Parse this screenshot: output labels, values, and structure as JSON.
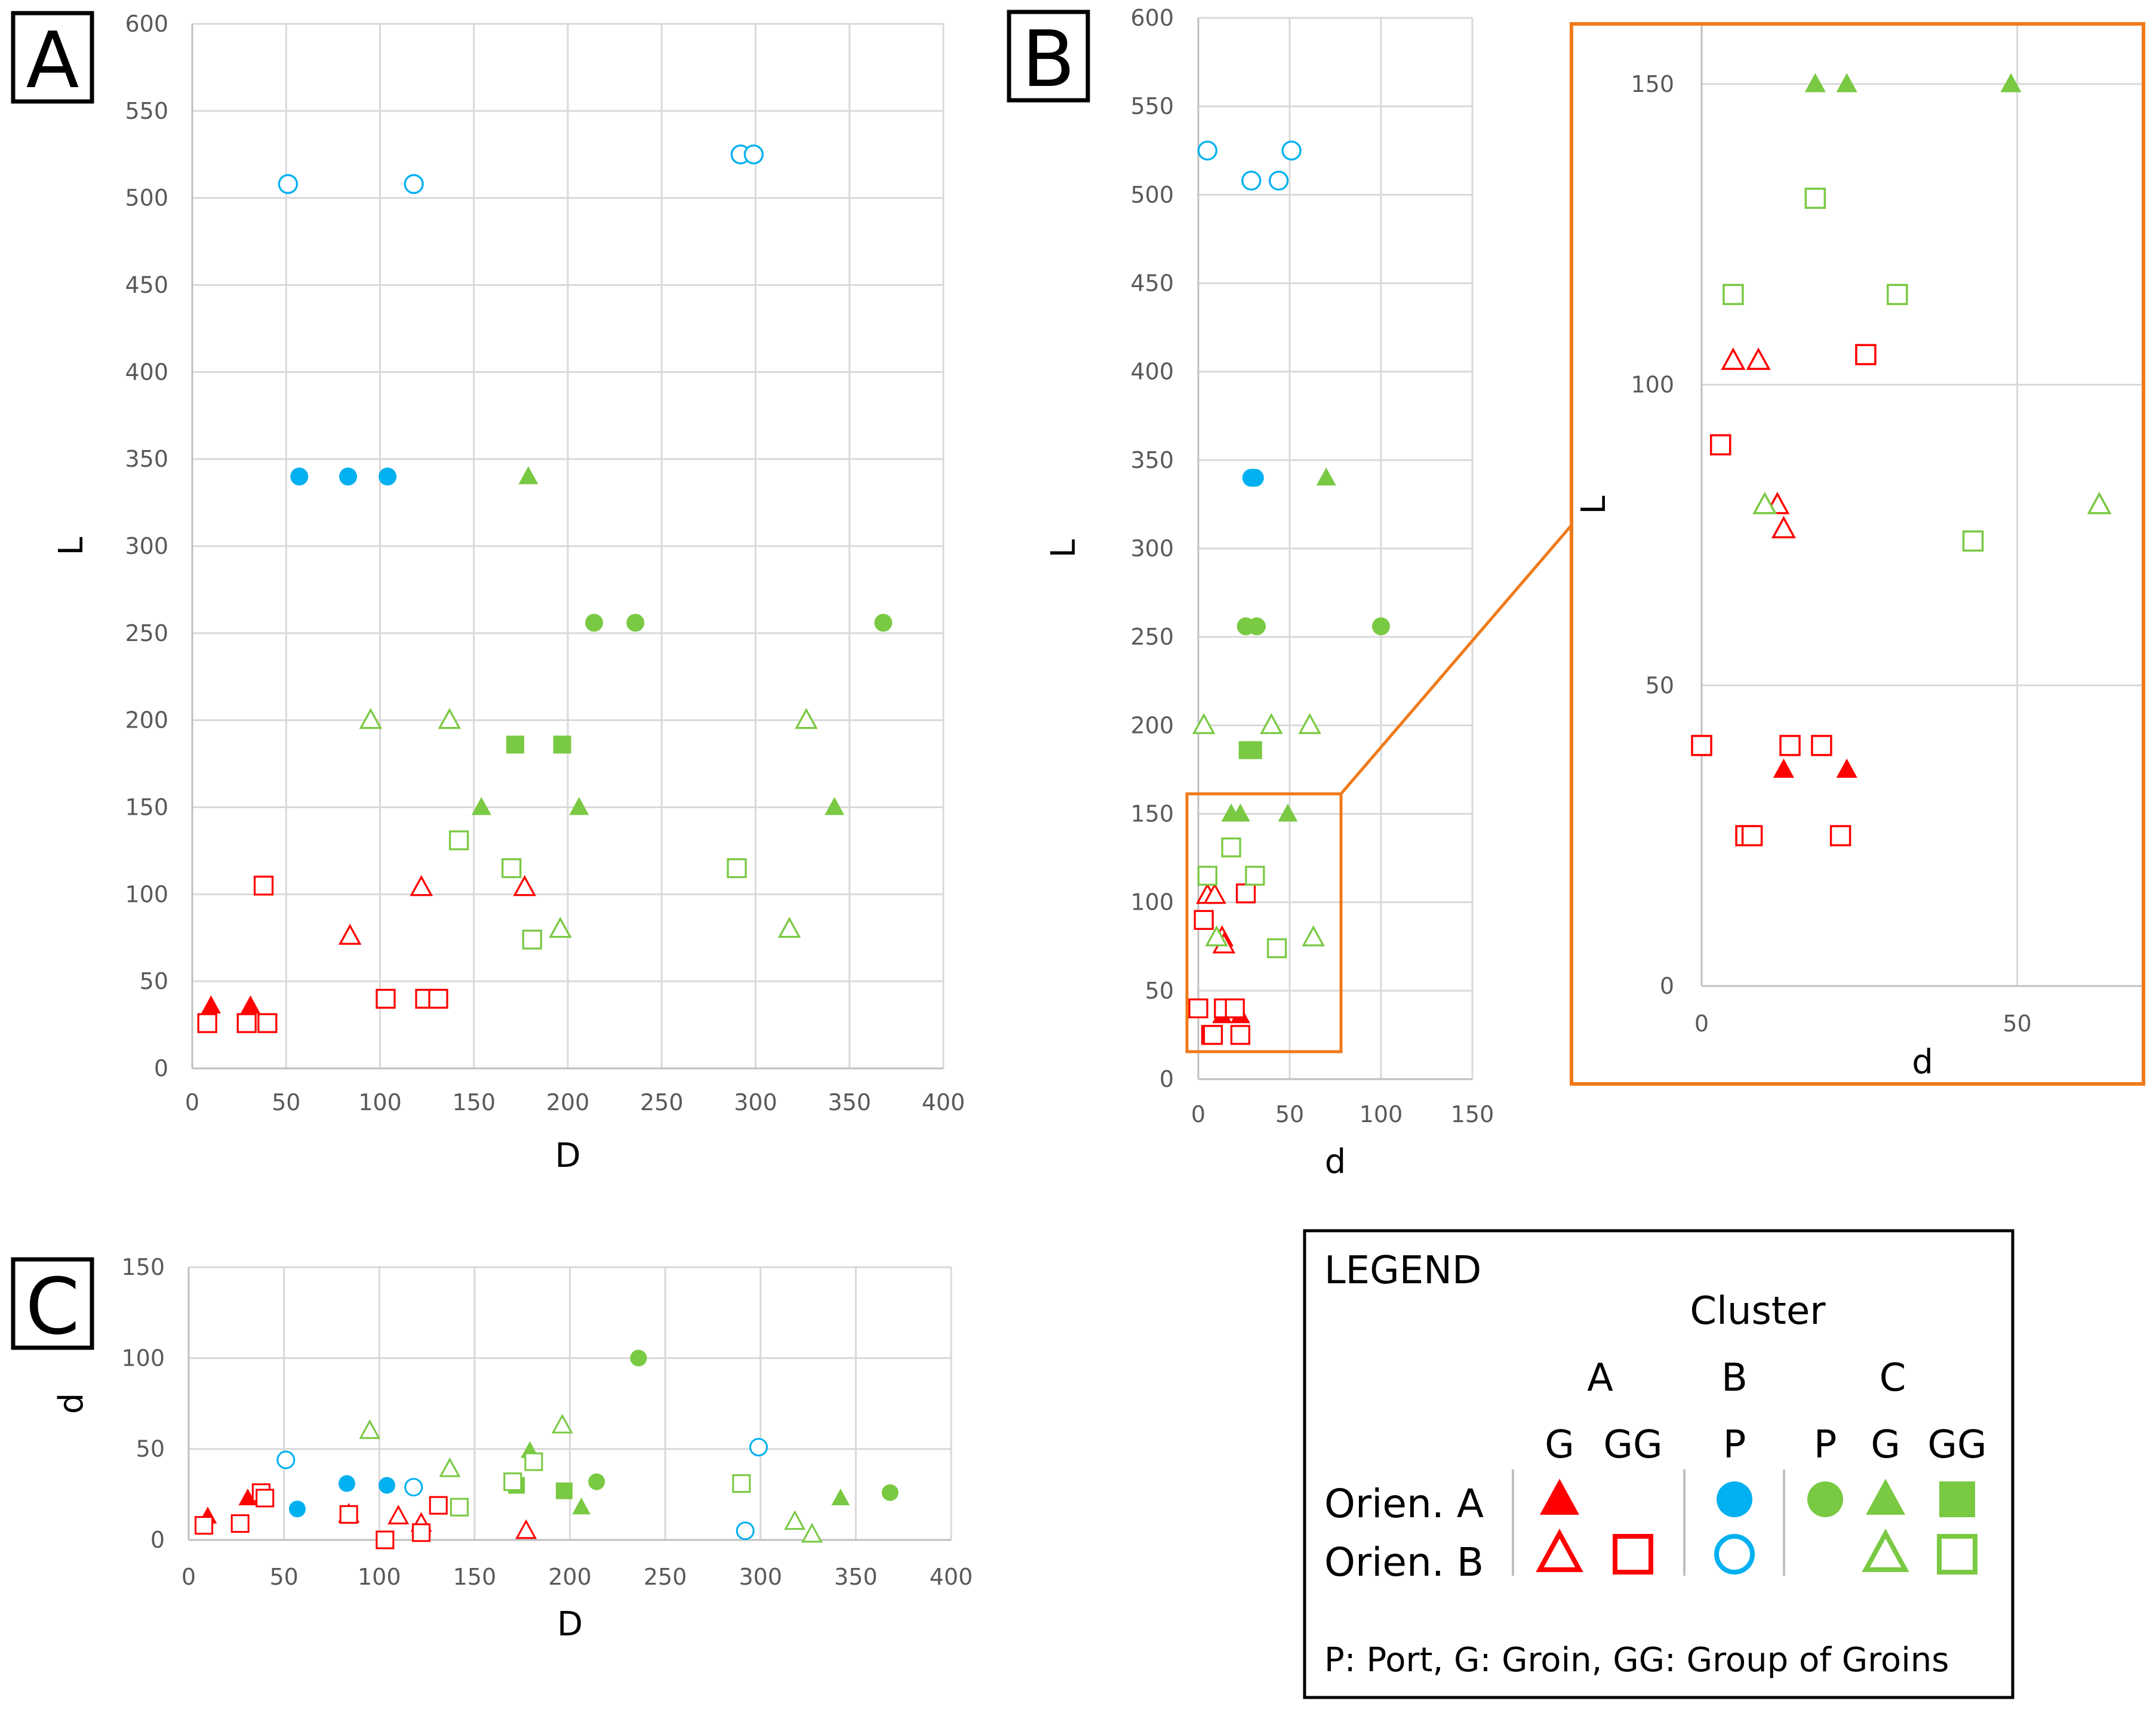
{
  "colors": {
    "orien_a_cluster_a": "#ff0000",
    "cluster_b": "#00b0f0",
    "cluster_c": "#7ac943",
    "grid": "#d9d9d9",
    "zoom_frame": "#f07a1a"
  },
  "chart_data": [
    {
      "panel": "A",
      "type": "scatter",
      "xlabel": "D",
      "ylabel": "L",
      "xlim": [
        0,
        400
      ],
      "ylim": [
        0,
        600
      ],
      "xticks": [
        "0",
        "50",
        "100",
        "150",
        "200",
        "250",
        "300",
        "350",
        "400"
      ],
      "yticks": [
        "0",
        "50",
        "100",
        "150",
        "200",
        "250",
        "300",
        "350",
        "400",
        "450",
        "500",
        "550",
        "600"
      ],
      "series": [
        {
          "name": "A G Orien. A",
          "marker": "triangle",
          "filled": true,
          "color": "#ff0000",
          "x": [
            10,
            31
          ],
          "y": [
            36,
            36
          ]
        },
        {
          "name": "A G Orien. B",
          "marker": "triangle",
          "filled": false,
          "color": "#ff0000",
          "x": [
            84,
            122,
            177
          ],
          "y": [
            76,
            104,
            104
          ]
        },
        {
          "name": "A GG Orien. B",
          "marker": "square",
          "filled": false,
          "color": "#ff0000",
          "x": [
            8,
            29,
            40,
            38,
            103,
            124,
            131
          ],
          "y": [
            26,
            26,
            26,
            105,
            40,
            40,
            40
          ]
        },
        {
          "name": "B P Orien. A",
          "marker": "circle",
          "filled": true,
          "color": "#00b0f0",
          "x": [
            57,
            83,
            104
          ],
          "y": [
            340,
            340,
            340
          ]
        },
        {
          "name": "B P Orien. B",
          "marker": "circle",
          "filled": false,
          "color": "#00b0f0",
          "x": [
            51,
            118,
            292,
            299
          ],
          "y": [
            508,
            508,
            525,
            525
          ]
        },
        {
          "name": "C P Orien. A",
          "marker": "circle",
          "filled": true,
          "color": "#7ac943",
          "x": [
            214,
            236,
            368
          ],
          "y": [
            256,
            256,
            256
          ]
        },
        {
          "name": "C G Orien. A",
          "marker": "triangle",
          "filled": true,
          "color": "#7ac943",
          "x": [
            179,
            154,
            206,
            342
          ],
          "y": [
            340,
            150,
            150,
            150
          ]
        },
        {
          "name": "C GG Orien. A",
          "marker": "square",
          "filled": true,
          "color": "#7ac943",
          "x": [
            172,
            197
          ],
          "y": [
            186,
            186
          ]
        },
        {
          "name": "C G Orien. B",
          "marker": "triangle",
          "filled": false,
          "color": "#7ac943",
          "x": [
            95,
            137,
            327,
            196,
            318
          ],
          "y": [
            200,
            200,
            200,
            80,
            80
          ]
        },
        {
          "name": "C GG Orien. B",
          "marker": "square",
          "filled": false,
          "color": "#7ac943",
          "x": [
            142,
            170,
            290,
            181
          ],
          "y": [
            131,
            115,
            115,
            74
          ]
        }
      ]
    },
    {
      "panel": "B",
      "type": "scatter",
      "xlabel": "d",
      "ylabel": "L",
      "xlim": [
        0,
        150
      ],
      "ylim": [
        0,
        600
      ],
      "xticks": [
        "0",
        "50",
        "100",
        "150"
      ],
      "yticks": [
        "0",
        "50",
        "100",
        "150",
        "200",
        "250",
        "300",
        "350",
        "400",
        "450",
        "500",
        "550",
        "600"
      ],
      "series": [
        {
          "name": "A G Orien. A",
          "marker": "triangle",
          "filled": true,
          "color": "#ff0000",
          "x": [
            13,
            23
          ],
          "y": [
            36,
            36
          ]
        },
        {
          "name": "A G Orien. B",
          "marker": "triangle",
          "filled": false,
          "color": "#ff0000",
          "x": [
            5,
            9,
            13,
            14
          ],
          "y": [
            104,
            104,
            80,
            76
          ]
        },
        {
          "name": "A GG Orien. B",
          "marker": "square",
          "filled": false,
          "color": "#ff0000",
          "x": [
            0,
            14,
            20,
            7,
            8,
            23,
            26,
            3
          ],
          "y": [
            40,
            40,
            40,
            25,
            25,
            25,
            105,
            90
          ]
        },
        {
          "name": "B P Orien. A",
          "marker": "circle",
          "filled": true,
          "color": "#00b0f0",
          "x": [
            29,
            30,
            31
          ],
          "y": [
            340,
            340,
            340
          ]
        },
        {
          "name": "B P Orien. B",
          "marker": "circle",
          "filled": false,
          "color": "#00b0f0",
          "x": [
            5,
            29,
            44,
            51
          ],
          "y": [
            525,
            508,
            508,
            525
          ]
        },
        {
          "name": "C P Orien. A",
          "marker": "circle",
          "filled": true,
          "color": "#7ac943",
          "x": [
            26,
            32,
            100
          ],
          "y": [
            256,
            256,
            256
          ]
        },
        {
          "name": "C G Orien. A",
          "marker": "triangle",
          "filled": true,
          "color": "#7ac943",
          "x": [
            70,
            18,
            23,
            49
          ],
          "y": [
            340,
            150,
            150,
            150
          ]
        },
        {
          "name": "C GG Orien. A",
          "marker": "square",
          "filled": true,
          "color": "#7ac943",
          "x": [
            27,
            30
          ],
          "y": [
            186,
            186
          ]
        },
        {
          "name": "C G Orien. B",
          "marker": "triangle",
          "filled": false,
          "color": "#7ac943",
          "x": [
            3,
            40,
            61,
            10,
            63
          ],
          "y": [
            200,
            200,
            200,
            80,
            80
          ]
        },
        {
          "name": "C GG Orien. B",
          "marker": "square",
          "filled": false,
          "color": "#7ac943",
          "x": [
            5,
            18,
            31,
            43
          ],
          "y": [
            115,
            131,
            115,
            74
          ]
        }
      ]
    },
    {
      "panel": "B-zoom",
      "type": "scatter",
      "xlabel": "d",
      "ylabel": "L",
      "xlim": [
        0,
        70
      ],
      "ylim": [
        0,
        160
      ],
      "xticks": [
        "0",
        "50"
      ],
      "yticks": [
        "0",
        "50",
        "100",
        "150"
      ],
      "series": [
        {
          "name": "A G Orien. A",
          "marker": "triangle",
          "filled": true,
          "color": "#ff0000",
          "x": [
            13,
            23
          ],
          "y": [
            36,
            36
          ]
        },
        {
          "name": "A G Orien. B",
          "marker": "triangle",
          "filled": false,
          "color": "#ff0000",
          "x": [
            5,
            9,
            12,
            13
          ],
          "y": [
            104,
            104,
            80,
            76
          ]
        },
        {
          "name": "A GG Orien. B",
          "marker": "square",
          "filled": false,
          "color": "#ff0000",
          "x": [
            0,
            14,
            19,
            7,
            8,
            22,
            26,
            3
          ],
          "y": [
            40,
            40,
            40,
            25,
            25,
            25,
            105,
            90
          ]
        },
        {
          "name": "C G Orien. A",
          "marker": "triangle",
          "filled": true,
          "color": "#7ac943",
          "x": [
            18,
            23,
            49
          ],
          "y": [
            150,
            150,
            150
          ]
        },
        {
          "name": "C G Orien. B",
          "marker": "triangle",
          "filled": false,
          "color": "#7ac943",
          "x": [
            10,
            63
          ],
          "y": [
            80,
            80
          ]
        },
        {
          "name": "C GG Orien. B",
          "marker": "square",
          "filled": false,
          "color": "#7ac943",
          "x": [
            5,
            18,
            31,
            43
          ],
          "y": [
            115,
            131,
            115,
            74
          ]
        }
      ]
    },
    {
      "panel": "C",
      "type": "scatter",
      "xlabel": "D",
      "ylabel": "d",
      "xlim": [
        0,
        400
      ],
      "ylim": [
        0,
        150
      ],
      "xticks": [
        "0",
        "50",
        "100",
        "150",
        "200",
        "250",
        "300",
        "350",
        "400"
      ],
      "yticks": [
        "0",
        "50",
        "100",
        "150"
      ],
      "series": [
        {
          "name": "A G Orien. A",
          "marker": "triangle",
          "filled": true,
          "color": "#ff0000",
          "x": [
            10,
            31
          ],
          "y": [
            13,
            23
          ]
        },
        {
          "name": "A G Orien. B",
          "marker": "triangle",
          "filled": false,
          "color": "#ff0000",
          "x": [
            84,
            110,
            122,
            177
          ],
          "y": [
            14,
            13,
            9,
            5
          ]
        },
        {
          "name": "A GG Orien. B",
          "marker": "square",
          "filled": false,
          "color": "#ff0000",
          "x": [
            8,
            27,
            38,
            40,
            84,
            103,
            122,
            131
          ],
          "y": [
            8,
            9,
            26,
            23,
            14,
            0,
            4,
            19
          ]
        },
        {
          "name": "B P Orien. A",
          "marker": "circle",
          "filled": true,
          "color": "#00b0f0",
          "x": [
            57,
            83,
            104
          ],
          "y": [
            17,
            31,
            30
          ]
        },
        {
          "name": "B P Orien. B",
          "marker": "circle",
          "filled": false,
          "color": "#00b0f0",
          "x": [
            51,
            118,
            292,
            299
          ],
          "y": [
            44,
            29,
            5,
            51
          ]
        },
        {
          "name": "C P Orien. A",
          "marker": "circle",
          "filled": true,
          "color": "#7ac943",
          "x": [
            214,
            236,
            368
          ],
          "y": [
            32,
            100,
            26
          ]
        },
        {
          "name": "C G Orien. A",
          "marker": "triangle",
          "filled": true,
          "color": "#7ac943",
          "x": [
            179,
            206,
            342
          ],
          "y": [
            49,
            18,
            23
          ]
        },
        {
          "name": "C GG Orien. A",
          "marker": "square",
          "filled": true,
          "color": "#7ac943",
          "x": [
            172,
            197
          ],
          "y": [
            30,
            27
          ]
        },
        {
          "name": "C G Orien. B",
          "marker": "triangle",
          "filled": false,
          "color": "#7ac943",
          "x": [
            95,
            137,
            196,
            318,
            327
          ],
          "y": [
            60,
            39,
            63,
            10,
            3
          ]
        },
        {
          "name": "C GG Orien. B",
          "marker": "square",
          "filled": false,
          "color": "#7ac943",
          "x": [
            142,
            170,
            181,
            290
          ],
          "y": [
            18,
            32,
            43,
            31
          ]
        }
      ]
    }
  ],
  "panel_labels": {
    "a": "A",
    "b": "B",
    "c": "C"
  },
  "legend": {
    "title": "LEGEND",
    "cluster_heading": "Cluster",
    "clusters": [
      "A",
      "B",
      "C"
    ],
    "types": {
      "a_g": "G",
      "a_gg": "GG",
      "b_p": "P",
      "c_p": "P",
      "c_g": "G",
      "c_gg": "GG"
    },
    "rows": {
      "orien_a": "Orien. A",
      "orien_b": "Orien. B"
    },
    "footnote": "P: Port, G: Groin, GG: Group of Groins"
  }
}
